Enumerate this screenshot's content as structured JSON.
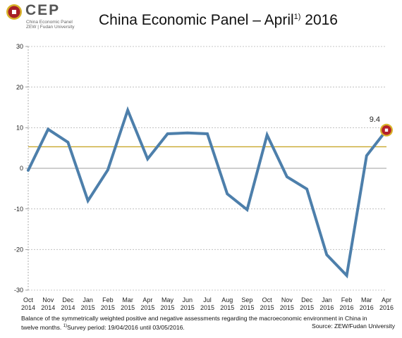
{
  "header": {
    "logo_text": "CEP",
    "logo_subtitle_1": "China Economic Panel",
    "logo_subtitle_2": "ZEW | Fudan University",
    "title_main": "China Economic Panel – April",
    "title_sup": "1)",
    "title_year": " 2016"
  },
  "colors": {
    "line": "#4d7fab",
    "reference_line": "#c8a72c",
    "zero_line": "#b0b0b0",
    "grid": "#b5b5b5",
    "marker_fill": "#b5202a",
    "marker_ring": "#d8b32a",
    "logo_red": "#a71f26"
  },
  "chart_data": {
    "type": "line",
    "categories": [
      [
        "Oct",
        "2014"
      ],
      [
        "Nov",
        "2014"
      ],
      [
        "Dec",
        "2014"
      ],
      [
        "Jan",
        "2015"
      ],
      [
        "Feb",
        "2015"
      ],
      [
        "Mar",
        "2015"
      ],
      [
        "Apr",
        "2015"
      ],
      [
        "May",
        "2015"
      ],
      [
        "Jun",
        "2015"
      ],
      [
        "Jul",
        "2015"
      ],
      [
        "Aug",
        "2015"
      ],
      [
        "Sep",
        "2015"
      ],
      [
        "Oct",
        "2015"
      ],
      [
        "Nov",
        "2015"
      ],
      [
        "Dec",
        "2015"
      ],
      [
        "Jan",
        "2016"
      ],
      [
        "Feb",
        "2016"
      ],
      [
        "Mar",
        "2016"
      ],
      [
        "Apr",
        "2016"
      ]
    ],
    "values": [
      -0.5,
      9.6,
      6.4,
      -8.0,
      -0.4,
      14.3,
      2.3,
      8.5,
      8.7,
      8.5,
      -6.3,
      -10.2,
      8.2,
      -2.1,
      -5.1,
      -21.3,
      -26.4,
      3.1,
      9.4
    ],
    "reference_value": 5.3,
    "ylim": [
      -30,
      30
    ],
    "yticks": [
      -30,
      -20,
      -10,
      0,
      10,
      20,
      30
    ],
    "grid": "horizontal dashed",
    "last_value_label": "9.4"
  },
  "footer": {
    "line1": "Balance of the symmetrically weighted positive and negative assessments regarding the macroeconomic environment  in China in",
    "line2": "twelve months. ",
    "survey_sup": "1)",
    "survey_period": "Survey period: 19/04/2016 until 03/05/2016.",
    "source": "Source: ZEW/Fudan University"
  }
}
